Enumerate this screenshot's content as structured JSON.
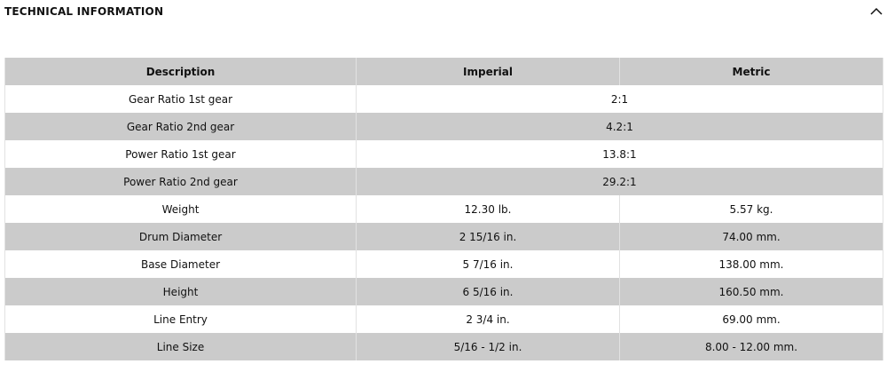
{
  "header": {
    "title": "TECHNICAL INFORMATION"
  },
  "table": {
    "columns": [
      "Description",
      "Imperial",
      "Metric"
    ],
    "rows": [
      [
        "Gear Ratio 1st gear",
        "2:1"
      ],
      [
        "Gear Ratio 2nd gear",
        "4.2:1"
      ],
      [
        "Power Ratio 1st gear",
        "13.8:1"
      ],
      [
        "Power Ratio 2nd gear",
        "29.2:1"
      ],
      [
        "Weight",
        "12.30 lb.",
        "5.57 kg."
      ],
      [
        "Drum Diameter",
        "2 15/16 in.",
        "74.00 mm."
      ],
      [
        "Base Diameter",
        "5 7/16 in.",
        "138.00 mm."
      ],
      [
        "Height",
        "6 5/16 in.",
        "160.50 mm."
      ],
      [
        "Line Entry",
        "2 3/4 in.",
        "69.00 mm."
      ],
      [
        "Line Size",
        "5/16 - 1/2 in.",
        "8.00 - 12.00 mm."
      ]
    ]
  }
}
